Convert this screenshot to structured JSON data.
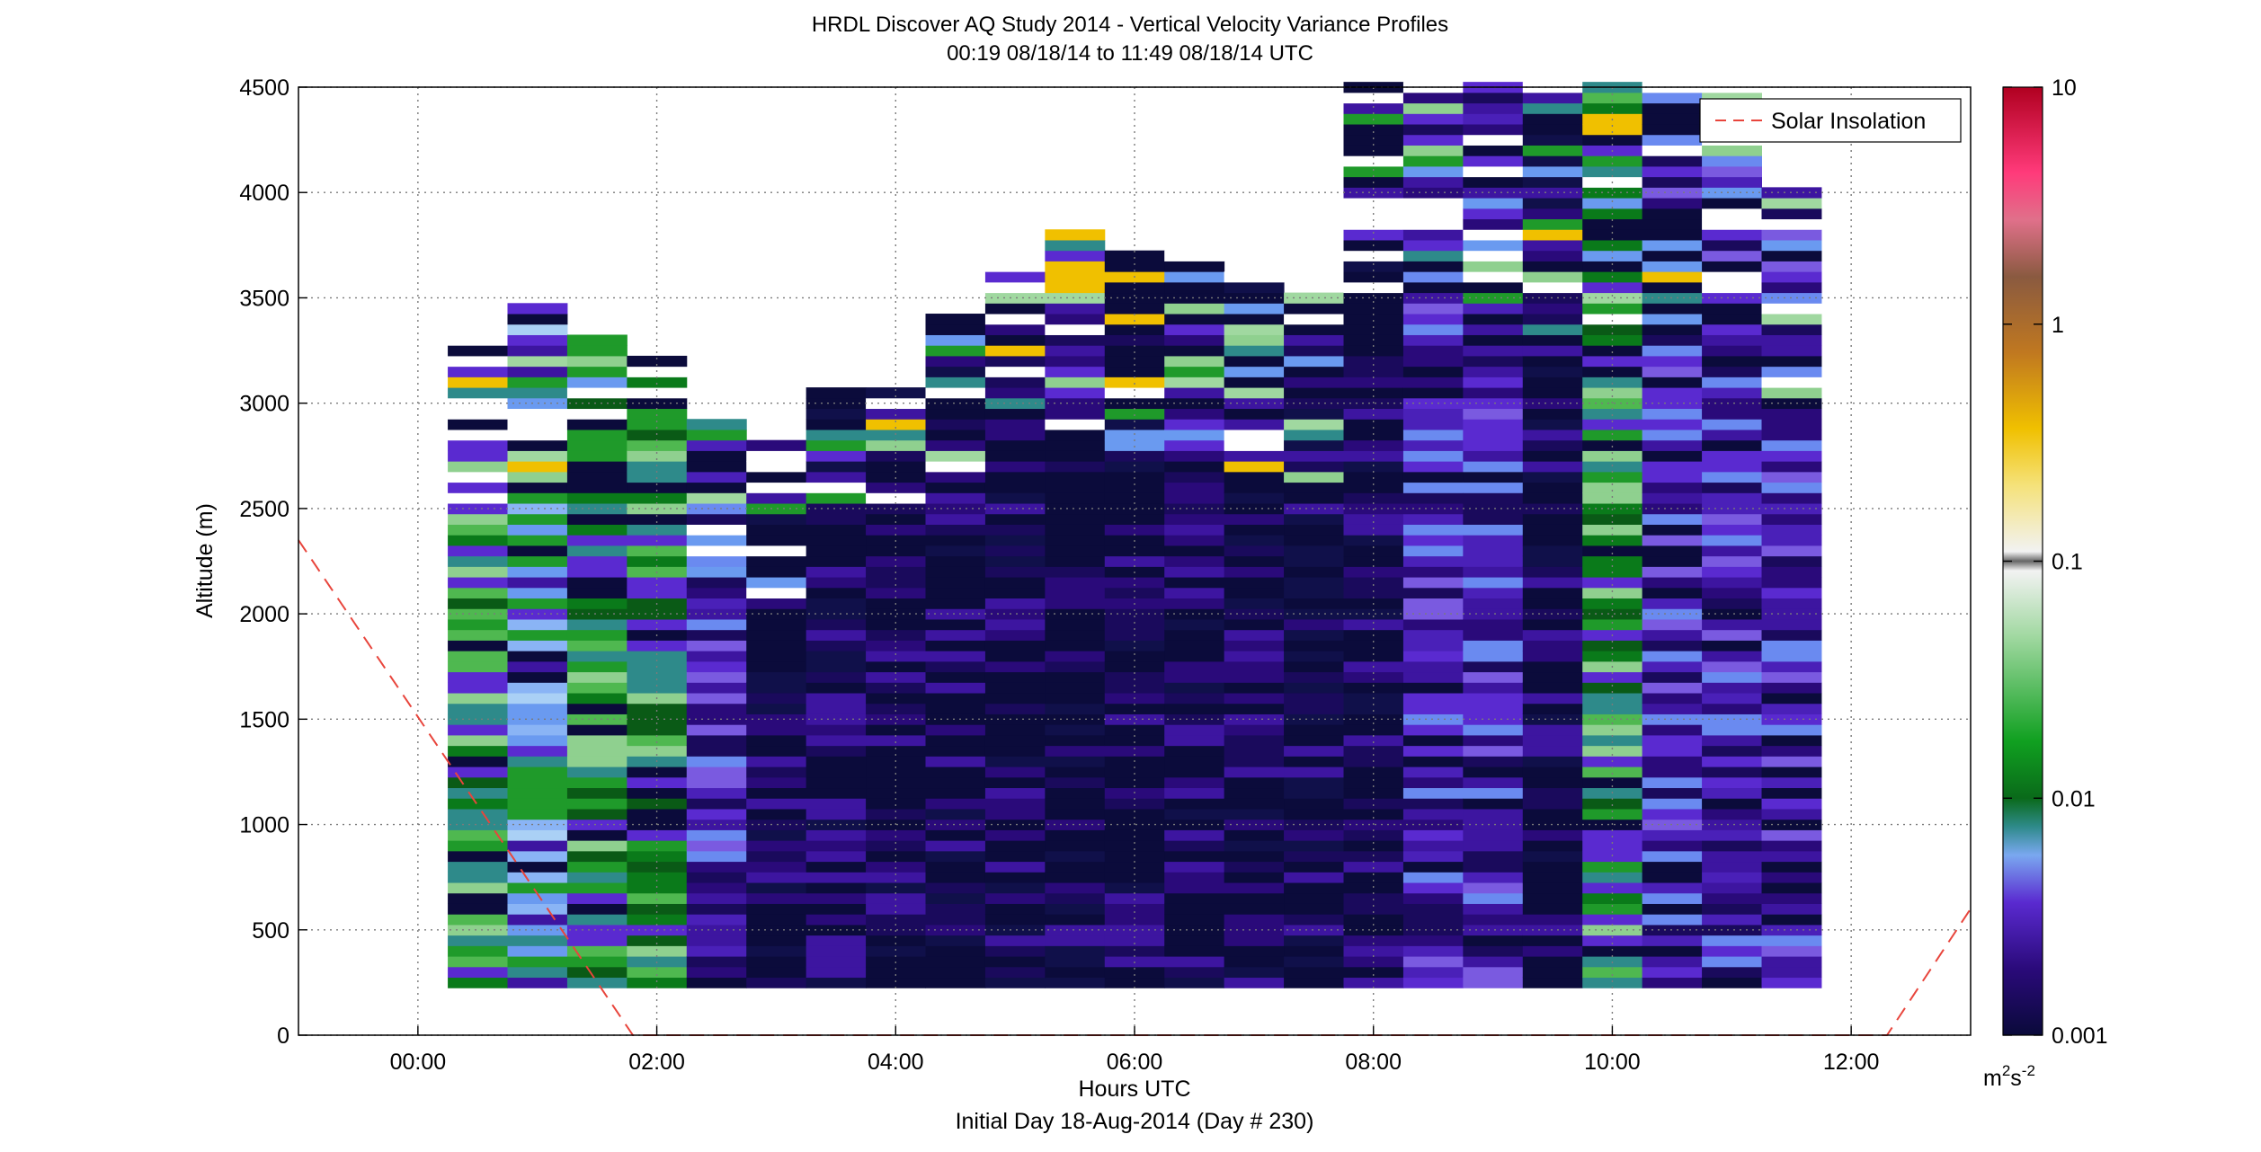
{
  "chart_data": {
    "type": "heatmap",
    "title": "HRDL Discover AQ Study 2014 - Vertical Velocity Variance Profiles",
    "subtitle": "00:19 08/18/14 to 11:49 08/18/14  UTC",
    "xlabel": "Hours UTC",
    "x_note": "Initial Day 18-Aug-2014 (Day # 230)",
    "ylabel": "Altitude (m)",
    "xlim_hours": [
      -1,
      13
    ],
    "ylim": [
      0,
      4500
    ],
    "x_ticks": [
      "00:00",
      "02:00",
      "04:00",
      "06:00",
      "08:00",
      "10:00",
      "12:00"
    ],
    "x_tick_values": [
      0,
      2,
      4,
      6,
      8,
      10,
      12
    ],
    "y_ticks": [
      "0",
      "500",
      "1000",
      "1500",
      "2000",
      "2500",
      "3000",
      "3500",
      "4000",
      "4500"
    ],
    "y_tick_values": [
      0,
      500,
      1000,
      1500,
      2000,
      2500,
      3000,
      3500,
      4000,
      4500
    ],
    "grid": true,
    "legend": {
      "position": "top-right",
      "entries": [
        "Solar Insolation"
      ]
    },
    "colorbar": {
      "scale": "log",
      "range": [
        0.001,
        10
      ],
      "ticks": [
        "10",
        "1",
        "0.1",
        "0.01",
        "0.001"
      ],
      "tick_values": [
        10,
        1,
        0.1,
        0.01,
        0.001
      ],
      "units_base": "m",
      "units_sup1": "2",
      "units_mid": "s",
      "units_sup2": "-2"
    },
    "profile_bin_m": 50,
    "profile_bottom_m": 225,
    "profiles": [
      {
        "t": 0.5,
        "top": 3300,
        "dom": "green"
      },
      {
        "t": 1.0,
        "top": 3450,
        "dom": "blue"
      },
      {
        "t": 1.5,
        "top": 3320,
        "dom": "green"
      },
      {
        "t": 2.0,
        "top": 3180,
        "dom": "green"
      },
      {
        "t": 2.5,
        "top": 2900,
        "dom": "purple"
      },
      {
        "t": 3.0,
        "top": 2780,
        "dom": "navy"
      },
      {
        "t": 3.5,
        "top": 3030,
        "dom": "navy"
      },
      {
        "t": 4.0,
        "top": 3050,
        "dom": "navy"
      },
      {
        "t": 4.5,
        "top": 3420,
        "dom": "navy"
      },
      {
        "t": 5.0,
        "top": 3720,
        "dom": "navy"
      },
      {
        "t": 5.5,
        "top": 3820,
        "dom": "navy"
      },
      {
        "t": 6.0,
        "top": 3690,
        "dom": "navy"
      },
      {
        "t": 6.5,
        "top": 3680,
        "dom": "navy"
      },
      {
        "t": 7.0,
        "top": 3620,
        "dom": "navy"
      },
      {
        "t": 7.5,
        "top": 3500,
        "dom": "navy"
      },
      {
        "t": 8.0,
        "top": 4500,
        "dom": "navy"
      },
      {
        "t": 8.5,
        "top": 4500,
        "dom": "purple"
      },
      {
        "t": 9.0,
        "top": 4500,
        "dom": "purple"
      },
      {
        "t": 9.5,
        "top": 4500,
        "dom": "navy"
      },
      {
        "t": 10.0,
        "top": 4500,
        "dom": "green"
      },
      {
        "t": 10.5,
        "top": 4500,
        "dom": "purple"
      },
      {
        "t": 11.0,
        "top": 4500,
        "dom": "purple"
      },
      {
        "t": 11.5,
        "top": 4000,
        "dom": "purple"
      }
    ],
    "solar_insolation": {
      "style": "dashed red",
      "color": "#e8453c",
      "points": [
        [
          -1,
          2350
        ],
        [
          1.8,
          0
        ],
        [
          12.3,
          0
        ],
        [
          13,
          600
        ]
      ]
    }
  }
}
